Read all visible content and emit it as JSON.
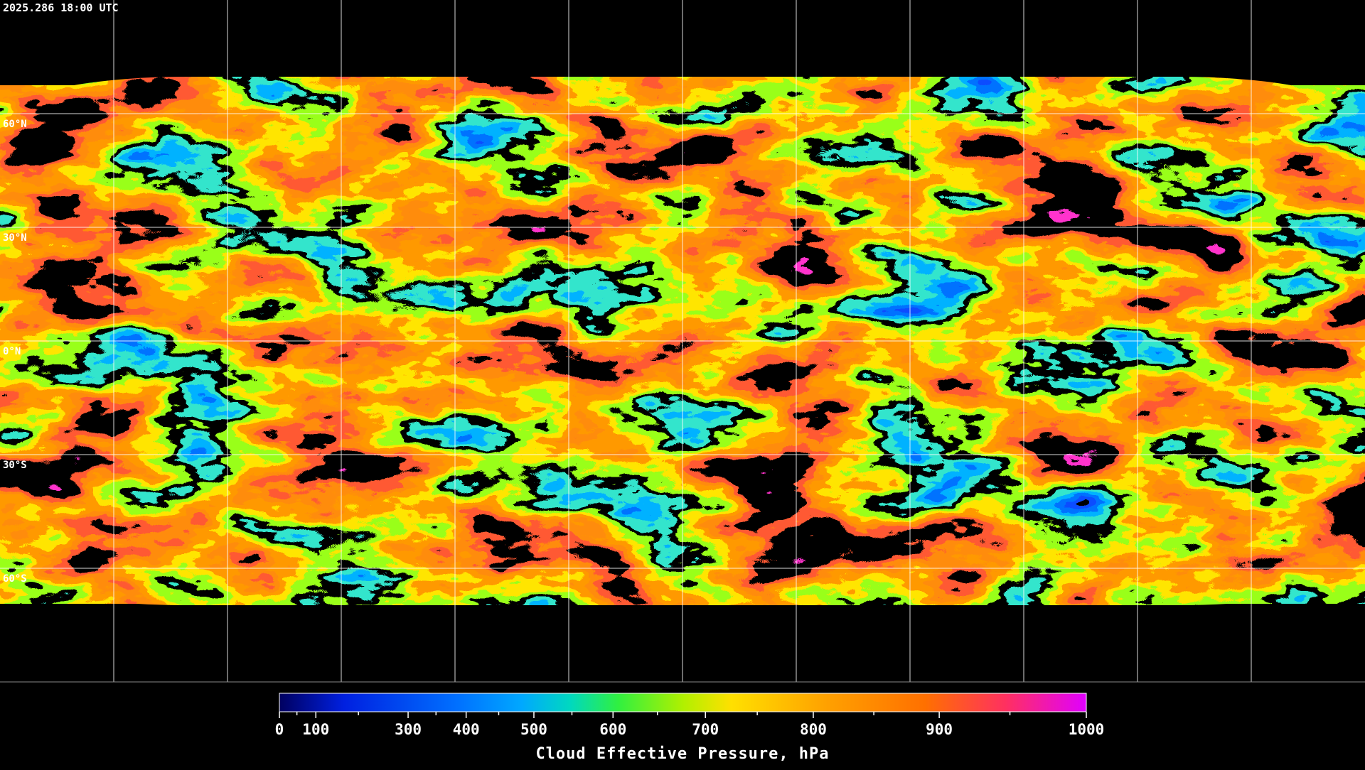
{
  "timestamp": "2025.286 18:00 UTC",
  "map": {
    "latlim": [
      -90,
      90
    ],
    "parallels": [
      {
        "value": 60,
        "label": "60°N"
      },
      {
        "value": 30,
        "label": "30°N"
      },
      {
        "value": 0,
        "label": "0°N"
      },
      {
        "value": -30,
        "label": "30°S"
      },
      {
        "value": -60,
        "label": "60°S"
      }
    ]
  },
  "colorbar": {
    "title": "Cloud Effective Pressure, hPa",
    "lim": [
      0,
      1000
    ],
    "ticks": [
      0,
      100,
      300,
      400,
      500,
      600,
      700,
      800,
      900,
      1000
    ],
    "minor_ticks": [
      50,
      200,
      350,
      450,
      550,
      650,
      750,
      850,
      950
    ]
  }
}
